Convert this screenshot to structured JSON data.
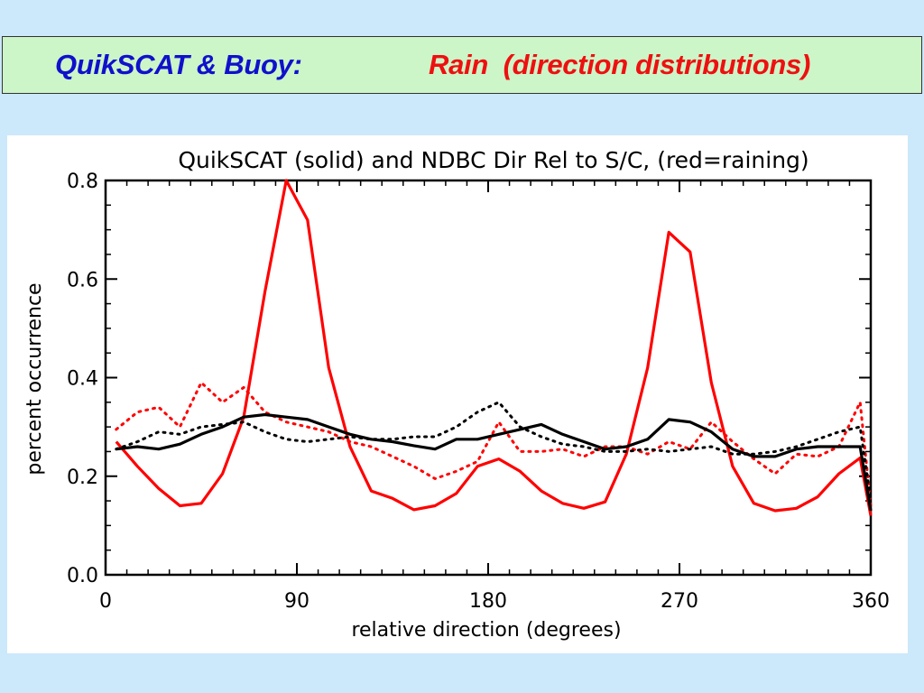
{
  "slide": {
    "title_left": "QuikSCAT & Buoy:",
    "title_right": "Rain  (direction distributions)",
    "colors": {
      "background": "#cce8fb",
      "title_box": "#ccf5c8",
      "title_left": "#1010cc",
      "title_right": "#ee1010"
    }
  },
  "chart_data": {
    "type": "line",
    "title": "QuikSCAT (solid) and NDBC Dir Rel to S/C, (red=raining)",
    "xlabel": "relative direction (degrees)",
    "ylabel": "percent occurrence",
    "xlim": [
      0,
      360
    ],
    "ylim": [
      0,
      0.8
    ],
    "xticks": [
      "0",
      "90",
      "180",
      "270",
      "360"
    ],
    "yticks": [
      "0.0",
      "0.2",
      "0.4",
      "0.6",
      "0.8"
    ],
    "grid": false,
    "series": [
      {
        "style": "solid",
        "color": "#ff0000",
        "points": [
          [
            5,
            0.27
          ],
          [
            15,
            0.22
          ],
          [
            25,
            0.175
          ],
          [
            35,
            0.14
          ],
          [
            45,
            0.145
          ],
          [
            55,
            0.205
          ],
          [
            65,
            0.32
          ],
          [
            75,
            0.575
          ],
          [
            85,
            0.8
          ],
          [
            95,
            0.72
          ],
          [
            105,
            0.42
          ],
          [
            115,
            0.26
          ],
          [
            125,
            0.17
          ],
          [
            135,
            0.155
          ],
          [
            145,
            0.132
          ],
          [
            155,
            0.14
          ],
          [
            165,
            0.165
          ],
          [
            175,
            0.22
          ],
          [
            185,
            0.235
          ],
          [
            195,
            0.21
          ],
          [
            205,
            0.17
          ],
          [
            215,
            0.145
          ],
          [
            225,
            0.135
          ],
          [
            235,
            0.148
          ],
          [
            245,
            0.245
          ],
          [
            255,
            0.42
          ],
          [
            265,
            0.695
          ],
          [
            275,
            0.655
          ],
          [
            285,
            0.39
          ],
          [
            295,
            0.22
          ],
          [
            305,
            0.145
          ],
          [
            315,
            0.13
          ],
          [
            325,
            0.135
          ],
          [
            335,
            0.158
          ],
          [
            345,
            0.205
          ],
          [
            355,
            0.237
          ],
          [
            360,
            0.12
          ]
        ]
      },
      {
        "style": "dotted",
        "color": "#ff0000",
        "points": [
          [
            5,
            0.295
          ],
          [
            15,
            0.33
          ],
          [
            25,
            0.34
          ],
          [
            35,
            0.3
          ],
          [
            45,
            0.39
          ],
          [
            55,
            0.35
          ],
          [
            65,
            0.38
          ],
          [
            75,
            0.33
          ],
          [
            85,
            0.31
          ],
          [
            95,
            0.3
          ],
          [
            105,
            0.29
          ],
          [
            115,
            0.27
          ],
          [
            125,
            0.26
          ],
          [
            135,
            0.24
          ],
          [
            145,
            0.22
          ],
          [
            155,
            0.195
          ],
          [
            165,
            0.21
          ],
          [
            175,
            0.23
          ],
          [
            185,
            0.31
          ],
          [
            195,
            0.25
          ],
          [
            205,
            0.25
          ],
          [
            215,
            0.255
          ],
          [
            225,
            0.24
          ],
          [
            235,
            0.26
          ],
          [
            245,
            0.26
          ],
          [
            255,
            0.245
          ],
          [
            265,
            0.27
          ],
          [
            275,
            0.255
          ],
          [
            285,
            0.31
          ],
          [
            295,
            0.27
          ],
          [
            305,
            0.235
          ],
          [
            315,
            0.205
          ],
          [
            325,
            0.245
          ],
          [
            335,
            0.24
          ],
          [
            345,
            0.26
          ],
          [
            355,
            0.35
          ],
          [
            360,
            0.14
          ]
        ]
      },
      {
        "style": "solid",
        "color": "#000000",
        "points": [
          [
            5,
            0.255
          ],
          [
            15,
            0.26
          ],
          [
            25,
            0.255
          ],
          [
            35,
            0.265
          ],
          [
            45,
            0.285
          ],
          [
            55,
            0.3
          ],
          [
            65,
            0.32
          ],
          [
            75,
            0.325
          ],
          [
            85,
            0.32
          ],
          [
            95,
            0.315
          ],
          [
            105,
            0.3
          ],
          [
            115,
            0.285
          ],
          [
            125,
            0.275
          ],
          [
            135,
            0.27
          ],
          [
            145,
            0.262
          ],
          [
            155,
            0.255
          ],
          [
            165,
            0.275
          ],
          [
            175,
            0.275
          ],
          [
            185,
            0.285
          ],
          [
            195,
            0.295
          ],
          [
            205,
            0.305
          ],
          [
            215,
            0.285
          ],
          [
            225,
            0.27
          ],
          [
            235,
            0.255
          ],
          [
            245,
            0.26
          ],
          [
            255,
            0.275
          ],
          [
            265,
            0.315
          ],
          [
            275,
            0.31
          ],
          [
            285,
            0.29
          ],
          [
            295,
            0.255
          ],
          [
            305,
            0.24
          ],
          [
            315,
            0.24
          ],
          [
            325,
            0.255
          ],
          [
            335,
            0.26
          ],
          [
            345,
            0.26
          ],
          [
            355,
            0.26
          ],
          [
            360,
            0.13
          ]
        ]
      },
      {
        "style": "dotted",
        "color": "#000000",
        "points": [
          [
            5,
            0.255
          ],
          [
            15,
            0.27
          ],
          [
            25,
            0.29
          ],
          [
            35,
            0.285
          ],
          [
            45,
            0.3
          ],
          [
            55,
            0.305
          ],
          [
            65,
            0.31
          ],
          [
            75,
            0.29
          ],
          [
            85,
            0.275
          ],
          [
            95,
            0.27
          ],
          [
            105,
            0.275
          ],
          [
            115,
            0.28
          ],
          [
            125,
            0.275
          ],
          [
            135,
            0.275
          ],
          [
            145,
            0.28
          ],
          [
            155,
            0.28
          ],
          [
            165,
            0.3
          ],
          [
            175,
            0.33
          ],
          [
            185,
            0.35
          ],
          [
            195,
            0.3
          ],
          [
            205,
            0.28
          ],
          [
            215,
            0.265
          ],
          [
            225,
            0.26
          ],
          [
            235,
            0.25
          ],
          [
            245,
            0.25
          ],
          [
            255,
            0.255
          ],
          [
            265,
            0.25
          ],
          [
            275,
            0.255
          ],
          [
            285,
            0.26
          ],
          [
            295,
            0.245
          ],
          [
            305,
            0.245
          ],
          [
            315,
            0.25
          ],
          [
            325,
            0.26
          ],
          [
            335,
            0.275
          ],
          [
            345,
            0.29
          ],
          [
            355,
            0.3
          ],
          [
            360,
            0.15
          ]
        ]
      }
    ]
  }
}
